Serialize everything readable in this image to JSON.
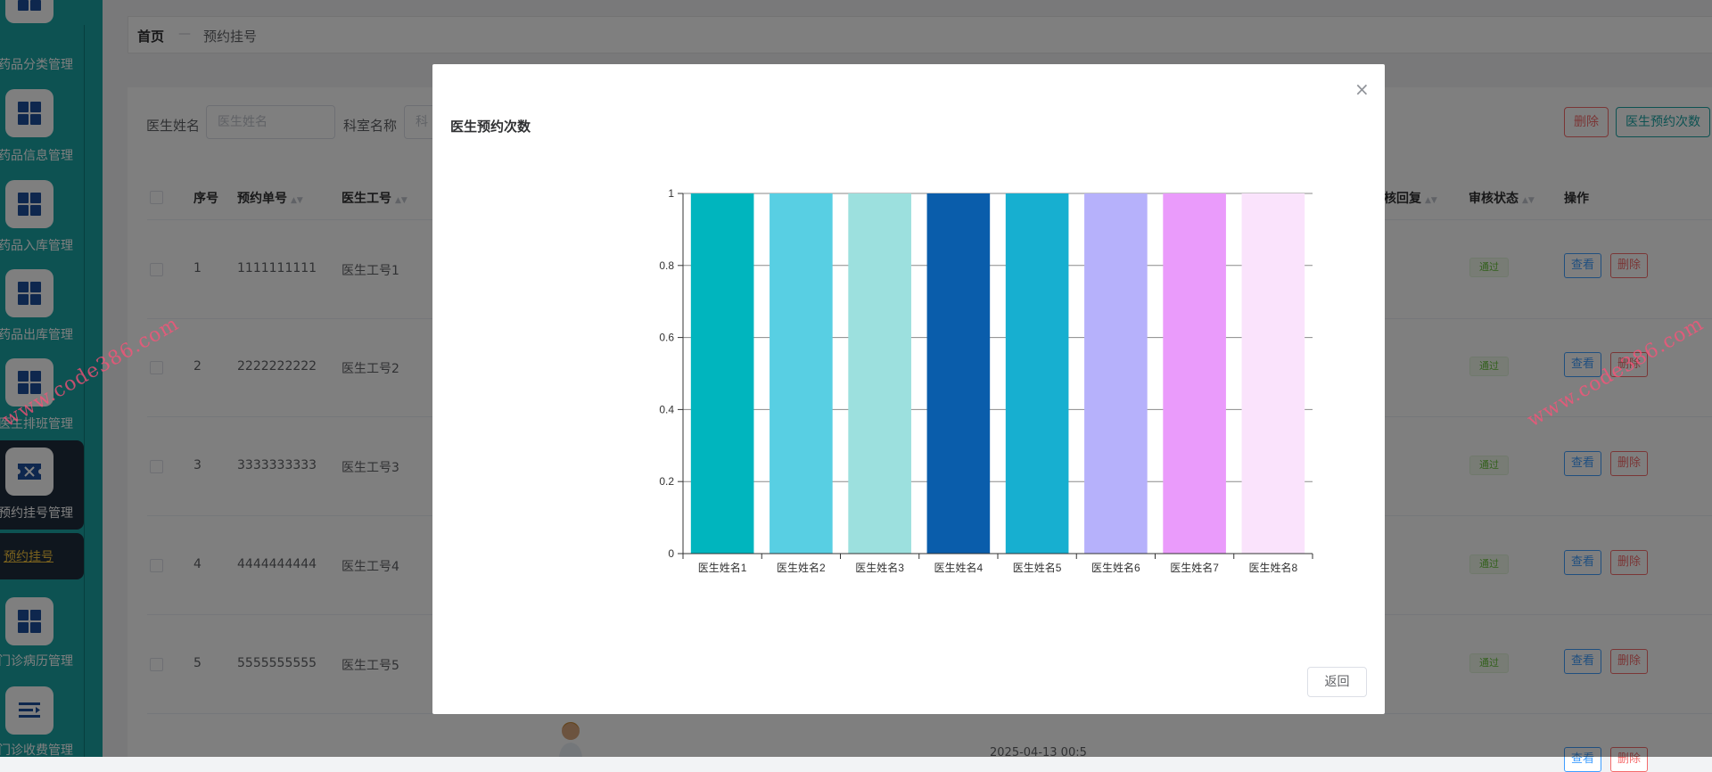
{
  "sidebar": {
    "items": [
      {
        "label": "药品分类管理",
        "icon": "grid-icon"
      },
      {
        "label": "药品信息管理",
        "icon": "grid-icon"
      },
      {
        "label": "药品入库管理",
        "icon": "grid-icon"
      },
      {
        "label": "药品出库管理",
        "icon": "grid-icon"
      },
      {
        "label": "医生排班管理",
        "icon": "grid-icon"
      },
      {
        "label": "预约挂号管理",
        "icon": "ticket-icon"
      },
      {
        "label": "门诊病历管理",
        "icon": "grid-icon"
      },
      {
        "label": "门诊收费管理",
        "icon": "list-icon"
      }
    ],
    "active_sub": "预约挂号"
  },
  "breadcrumb": {
    "home": "首页",
    "sep": "—",
    "current": "预约挂号"
  },
  "search": {
    "doctor_label": "医生姓名",
    "doctor_placeholder": "医生姓名",
    "dept_label": "科室名称",
    "dept_placeholder": "科"
  },
  "toolbar": {
    "delete_label": "删除",
    "stats_label": "医生预约次数"
  },
  "table": {
    "headers": {
      "index": "序号",
      "order_no": "预约单号",
      "doctor_no": "医生工号",
      "reply": "核回复",
      "status": "审核状态",
      "ops": "操作"
    },
    "rows": [
      {
        "index": "1",
        "order_no": "1111111111",
        "doctor_no": "医生工号1",
        "status": "通过"
      },
      {
        "index": "2",
        "order_no": "2222222222",
        "doctor_no": "医生工号2",
        "status": "通过"
      },
      {
        "index": "3",
        "order_no": "3333333333",
        "doctor_no": "医生工号3",
        "status": "通过"
      },
      {
        "index": "4",
        "order_no": "4444444444",
        "doctor_no": "医生工号4",
        "status": "通过"
      },
      {
        "index": "5",
        "order_no": "5555555555",
        "doctor_no": "医生工号5",
        "status": "通过"
      }
    ],
    "view_label": "查看",
    "delete_label": "删除",
    "partial_date": "2025-04-13 00:5"
  },
  "watermark": "www.code386.com",
  "modal": {
    "title": "医生预约次数",
    "close": "×",
    "back_label": "返回"
  },
  "chart_data": {
    "type": "bar",
    "title": "",
    "xlabel": "",
    "ylabel": "",
    "categories": [
      "医生姓名1",
      "医生姓名2",
      "医生姓名3",
      "医生姓名4",
      "医生姓名5",
      "医生姓名6",
      "医生姓名7",
      "医生姓名8"
    ],
    "values": [
      1,
      1,
      1,
      1,
      1,
      1,
      1,
      1
    ],
    "ylim": [
      0,
      1
    ],
    "yticks": [
      "0",
      "0.2",
      "0.4",
      "0.6",
      "0.8",
      "1"
    ],
    "colors": [
      "#00b5be",
      "#58cfe3",
      "#9ce0de",
      "#0a5dab",
      "#17afd0",
      "#b6b1fb",
      "#ea9bfb",
      "#fae3fc"
    ],
    "grid": true
  }
}
